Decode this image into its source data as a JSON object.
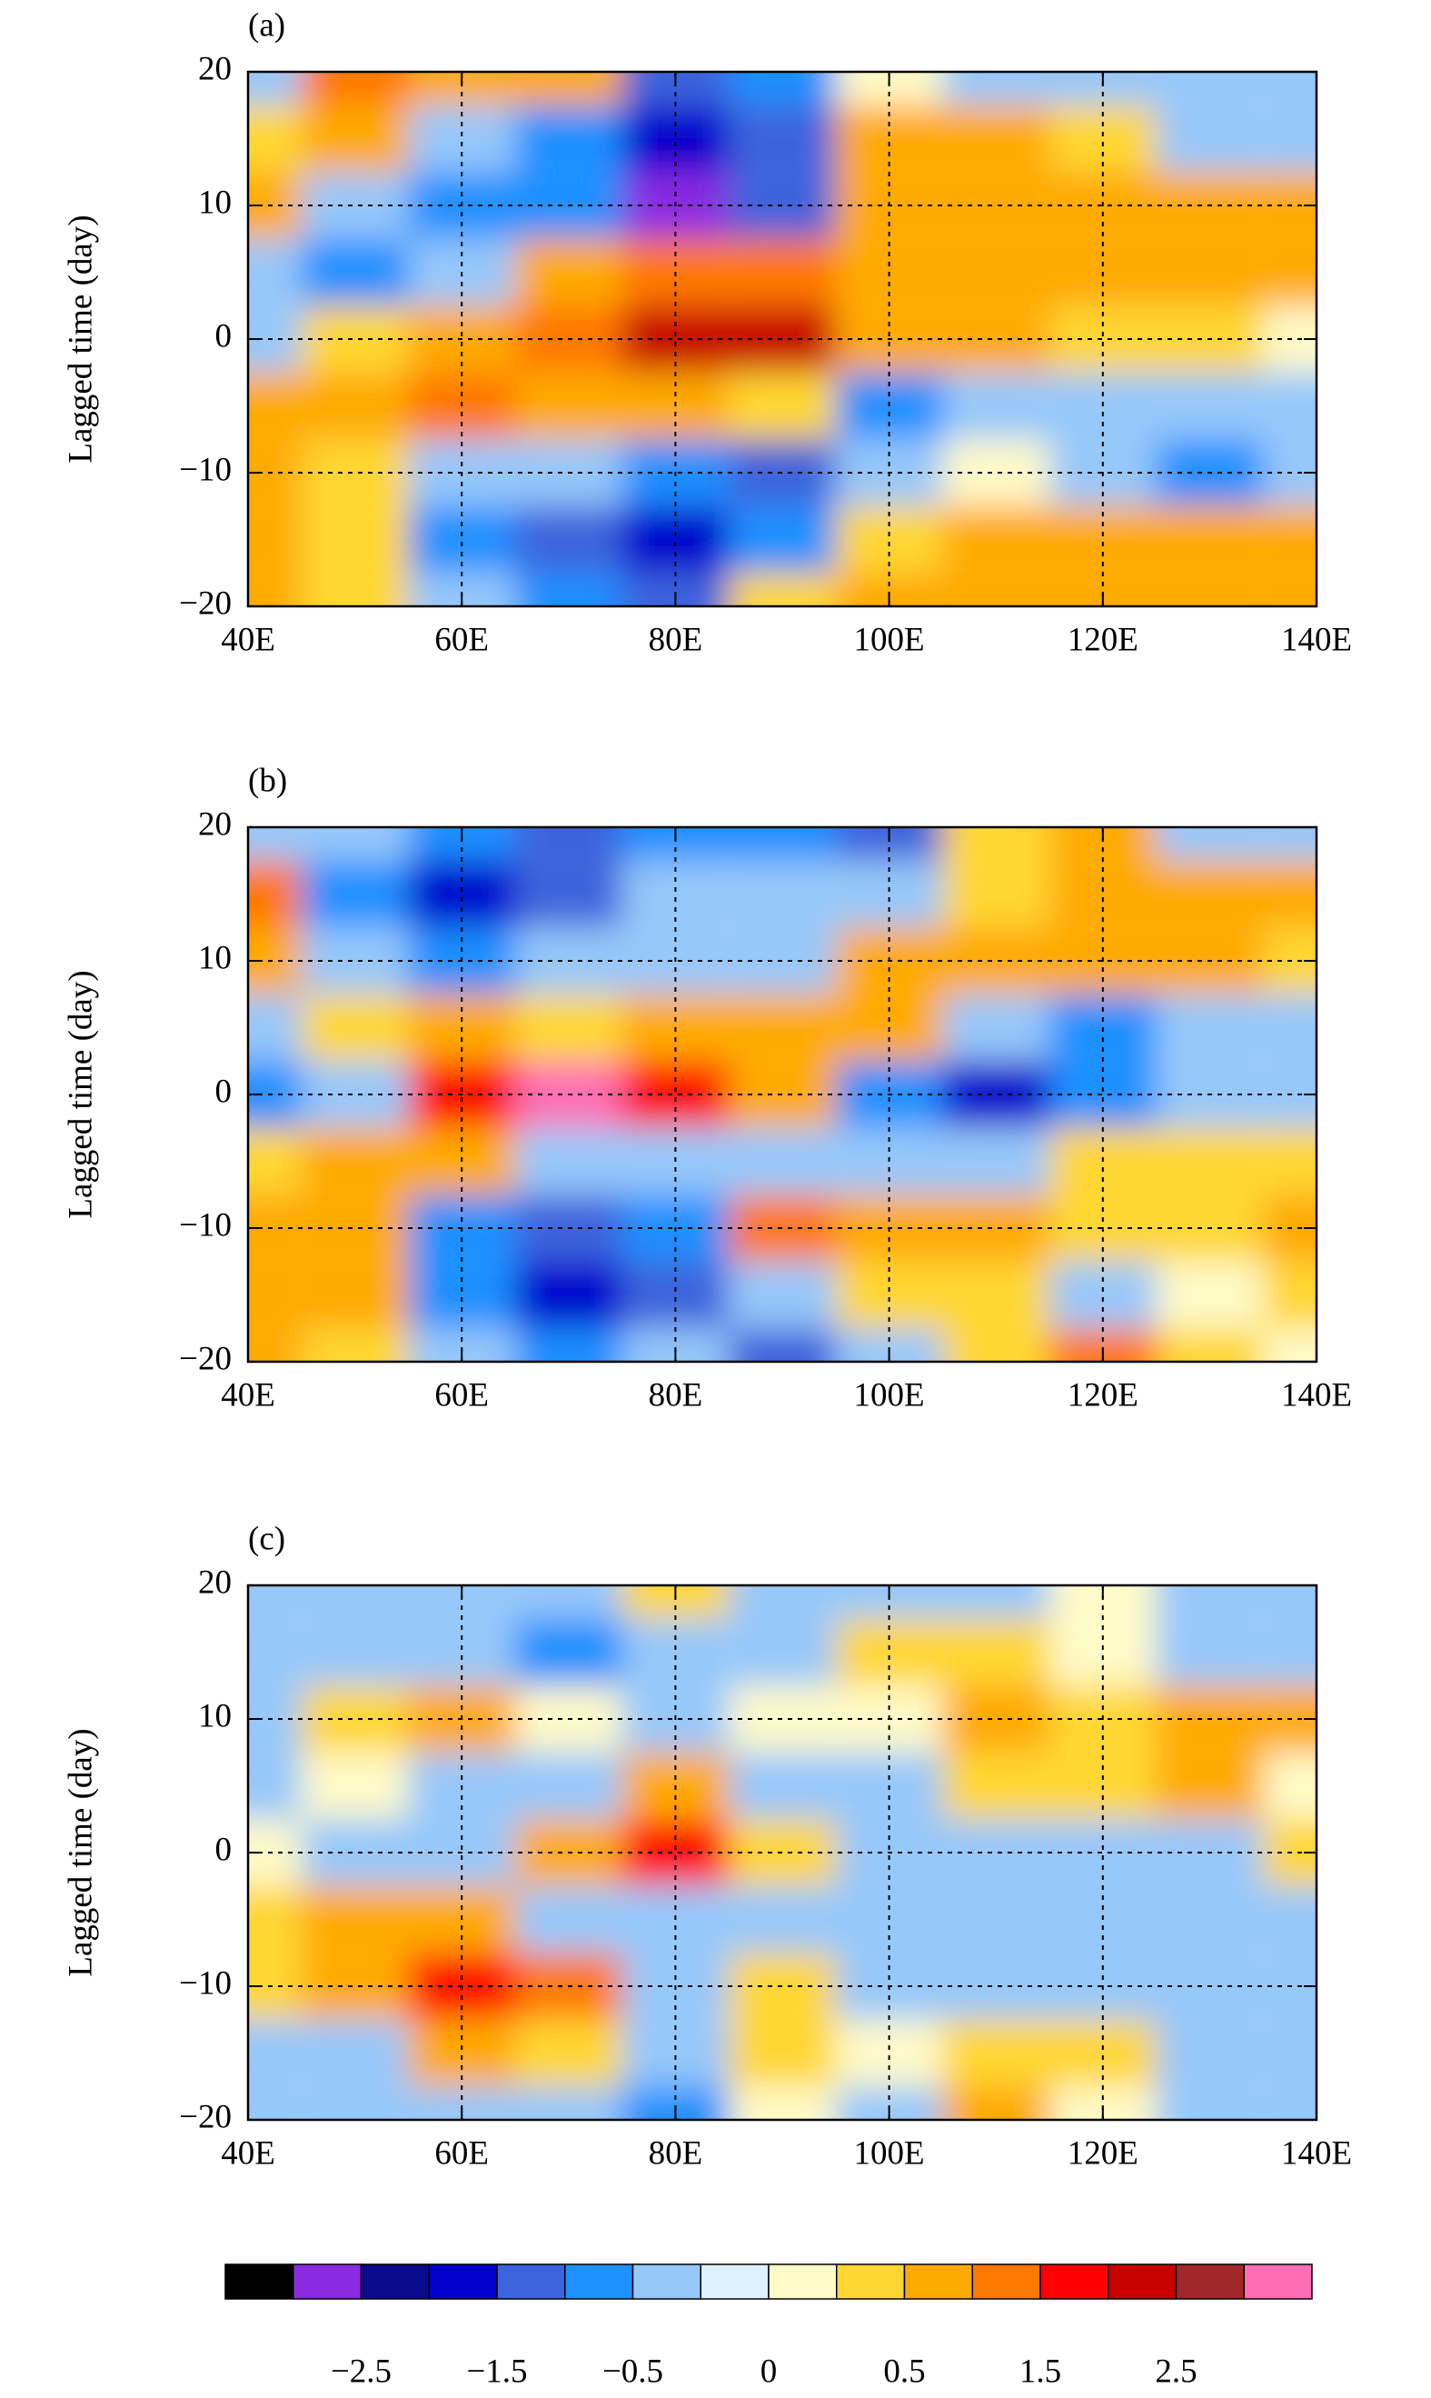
{
  "chart_data": [
    {
      "type": "contour",
      "label": "(a)",
      "ylabel": "Lagged time (day)",
      "x": [
        40,
        50,
        60,
        70,
        80,
        90,
        100,
        110,
        120,
        130,
        140
      ],
      "y": [
        20,
        15,
        10,
        5,
        0,
        -5,
        -10,
        -15,
        -20
      ],
      "z": [
        [
          -0.3,
          1,
          0.5,
          0.5,
          -1.5,
          -1,
          0.1,
          -0.3,
          -0.3,
          -0.3,
          -0.3
        ],
        [
          0.3,
          0.5,
          -0.5,
          -1,
          -1.8,
          -1.5,
          0.5,
          0.7,
          0.3,
          -0.3,
          -0.5
        ],
        [
          0.5,
          -0.5,
          -0.8,
          -0.7,
          -2.7,
          -1.2,
          0.5,
          0.7,
          0.7,
          0.7,
          0.7
        ],
        [
          -0.5,
          -0.7,
          -0.5,
          0.7,
          1,
          1.2,
          0.7,
          0.7,
          0.5,
          0.7,
          0.5
        ],
        [
          -0.5,
          0.3,
          0.7,
          1.2,
          2.2,
          2,
          0.7,
          0.5,
          0.3,
          0.3,
          0.2
        ],
        [
          0.5,
          0.7,
          1,
          0.7,
          0.5,
          0.3,
          -0.7,
          -0.3,
          -0.5,
          -0.3,
          -0.3
        ],
        [
          0.7,
          0.3,
          -0.5,
          -0.5,
          -1,
          -1.2,
          -0.3,
          0.1,
          -0.3,
          -1,
          -0.3
        ],
        [
          0.5,
          0.3,
          -1,
          -1.2,
          -2,
          -0.7,
          0.3,
          0.5,
          0.5,
          0.7,
          0.5
        ],
        [
          0.7,
          0.3,
          -0.5,
          -1,
          -1.2,
          0.3,
          0.5,
          0.5,
          0.5,
          0.5,
          0.5
        ]
      ],
      "xlim": [
        40,
        140
      ],
      "ylim": [
        -20,
        20
      ],
      "xticks": [
        {
          "value": 40,
          "label": "40E"
        },
        {
          "value": 60,
          "label": "60E"
        },
        {
          "value": 80,
          "label": "80E"
        },
        {
          "value": 100,
          "label": "100E"
        },
        {
          "value": 120,
          "label": "120E"
        },
        {
          "value": 140,
          "label": "140E"
        }
      ],
      "yticks": [
        {
          "value": -20,
          "label": "−20"
        },
        {
          "value": -10,
          "label": "−10"
        },
        0,
        10,
        20
      ],
      "grid": true
    },
    {
      "type": "contour",
      "label": "(b)",
      "ylabel": "Lagged time (day)",
      "x": [
        40,
        50,
        60,
        70,
        80,
        90,
        100,
        110,
        120,
        130,
        140
      ],
      "y": [
        20,
        15,
        10,
        5,
        0,
        -5,
        -10,
        -15,
        -20
      ],
      "z": [
        [
          -0.3,
          -0.5,
          -1,
          -1.2,
          -0.7,
          -0.7,
          -1.5,
          0.3,
          0.7,
          -0.3,
          -0.5
        ],
        [
          1,
          -0.7,
          -2,
          -1.5,
          -0.5,
          -0.3,
          -0.5,
          0.3,
          0.5,
          0.7,
          0.5
        ],
        [
          0.7,
          -0.5,
          -0.7,
          -0.5,
          -0.3,
          -0.3,
          0.5,
          0.7,
          0.5,
          0.7,
          0.3
        ],
        [
          -0.5,
          0.3,
          0.7,
          0.3,
          0.5,
          0.7,
          0.7,
          -0.5,
          -0.7,
          -0.5,
          -0.5
        ],
        [
          -0.7,
          -0.3,
          1.5,
          3.2,
          1.5,
          0.5,
          -0.7,
          -1.8,
          -0.7,
          -0.5,
          -0.5
        ],
        [
          0.3,
          0.5,
          0.7,
          -0.3,
          -0.3,
          -0.3,
          -0.5,
          -0.3,
          0.3,
          0.3,
          0.3
        ],
        [
          0.7,
          0.5,
          -0.7,
          -1.5,
          -0.7,
          1.2,
          0.7,
          0.5,
          0.3,
          0.3,
          0.5
        ],
        [
          0.7,
          0.5,
          -0.7,
          -1.8,
          -1.2,
          -0.5,
          0.3,
          0.3,
          -0.3,
          0.1,
          0.3
        ],
        [
          0.5,
          0.3,
          -0.3,
          -1,
          -0.5,
          -1.2,
          -0.5,
          0.3,
          1.2,
          0.3,
          0.1
        ]
      ],
      "xlim": [
        40,
        140
      ],
      "ylim": [
        -20,
        20
      ],
      "xticks": [
        {
          "value": 40,
          "label": "40E"
        },
        {
          "value": 60,
          "label": "60E"
        },
        {
          "value": 80,
          "label": "80E"
        },
        {
          "value": 100,
          "label": "100E"
        },
        {
          "value": 120,
          "label": "120E"
        },
        {
          "value": 140,
          "label": "140E"
        }
      ],
      "yticks": [
        {
          "value": -20,
          "label": "−20"
        },
        {
          "value": -10,
          "label": "−10"
        },
        0,
        10,
        20
      ],
      "grid": true
    },
    {
      "type": "contour",
      "label": "(c)",
      "ylabel": "Lagged time (day)",
      "x": [
        40,
        50,
        60,
        70,
        80,
        90,
        100,
        110,
        120,
        130,
        140
      ],
      "y": [
        20,
        15,
        10,
        5,
        0,
        -5,
        -10,
        -15,
        -20
      ],
      "z": [
        [
          -0.3,
          -0.3,
          -0.5,
          -0.3,
          0.3,
          -0.3,
          -0.3,
          -0.3,
          0.1,
          -0.3,
          -0.3
        ],
        [
          -0.3,
          -0.3,
          -0.5,
          -0.7,
          -0.3,
          -0.3,
          0.3,
          0.3,
          0.1,
          -0.3,
          -0.3
        ],
        [
          -0.3,
          0.3,
          0.7,
          0.1,
          -0.3,
          0.1,
          0.1,
          0.5,
          0.3,
          0.5,
          0.5
        ],
        [
          -0.3,
          0.1,
          -0.3,
          -0.5,
          0.7,
          -0.5,
          -0.3,
          0.3,
          0.3,
          0.5,
          0.1
        ],
        [
          0.1,
          -0.5,
          -0.3,
          0.5,
          1.5,
          0.3,
          -0.5,
          -0.5,
          -0.3,
          -0.3,
          0.3
        ],
        [
          0.3,
          0.5,
          0.7,
          -0.3,
          -0.3,
          -0.3,
          -0.3,
          -0.5,
          -0.3,
          -0.3,
          -0.3
        ],
        [
          0.3,
          0.7,
          1.8,
          1,
          -0.3,
          0.3,
          -0.3,
          -0.3,
          -0.3,
          -0.3,
          -0.3
        ],
        [
          -0.3,
          -0.3,
          0.5,
          0.3,
          -0.5,
          0.3,
          0.1,
          0.3,
          0.3,
          -0.3,
          -0.3
        ],
        [
          -0.5,
          -0.5,
          -0.3,
          -0.5,
          -0.7,
          0.1,
          -0.3,
          0.5,
          0.1,
          -0.3,
          -0.3
        ]
      ],
      "xlim": [
        40,
        140
      ],
      "ylim": [
        -20,
        20
      ],
      "xticks": [
        {
          "value": 40,
          "label": "40E"
        },
        {
          "value": 60,
          "label": "60E"
        },
        {
          "value": 80,
          "label": "80E"
        },
        {
          "value": 100,
          "label": "100E"
        },
        {
          "value": 120,
          "label": "120E"
        },
        {
          "value": 140,
          "label": "140E"
        }
      ],
      "yticks": [
        {
          "value": -20,
          "label": "−20"
        },
        {
          "value": -10,
          "label": "−10"
        },
        0,
        10,
        20
      ],
      "grid": true
    }
  ],
  "colorbar": {
    "levels": [
      -3,
      -2.5,
      -2,
      -1.5,
      -1,
      -0.5,
      -0.25,
      0,
      0.25,
      0.5,
      1,
      1.5,
      2,
      2.5,
      3
    ],
    "colors": [
      "#000000",
      "#8a2be2",
      "#0a0a8c",
      "#0000cd",
      "#3c64dc",
      "#1e90ff",
      "#96c8fa",
      "#dcf2ff",
      "#fffac8",
      "#ffd732",
      "#ffaa00",
      "#ff7800",
      "#ff0000",
      "#c80000",
      "#a02828",
      "#ff6eb4"
    ],
    "ticks": [
      {
        "value": -2.5,
        "label": "−2.5"
      },
      {
        "value": -1.5,
        "label": "−1.5"
      },
      {
        "value": -0.5,
        "label": "−0.5"
      },
      0,
      0.5,
      1.5,
      2.5
    ]
  }
}
